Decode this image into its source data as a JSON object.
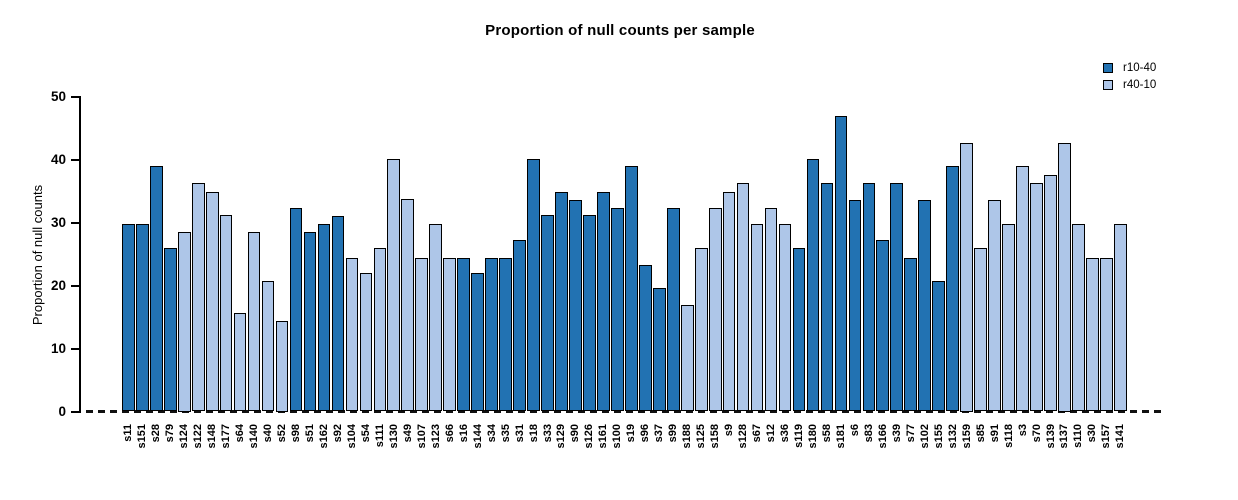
{
  "title": "Proportion of null counts per sample",
  "chart_data": {
    "type": "bar",
    "title": "Proportion of null counts per sample",
    "xlabel": "",
    "ylabel": "Proportion of null counts",
    "ylim": [
      0,
      50
    ],
    "yticks": [
      0,
      10,
      20,
      30,
      40,
      50
    ],
    "grid": false,
    "baseline": "dashed line at y=0",
    "legend_position": "top-right",
    "legend": [
      {
        "label": "r10-40",
        "color": "#2272b2"
      },
      {
        "label": "r40-10",
        "color": "#aec6e8"
      }
    ],
    "series_colors": {
      "r10-40": "#2272b2",
      "r40-10": "#aec6e8"
    },
    "categories": [
      "s11",
      "s151",
      "s28",
      "s79",
      "s124",
      "s122",
      "s148",
      "s177",
      "s64",
      "s140",
      "s40",
      "s52",
      "s98",
      "s51",
      "s162",
      "s92",
      "s104",
      "s54",
      "s111",
      "s130",
      "s49",
      "s107",
      "s123",
      "s66",
      "s16",
      "s144",
      "s34",
      "s35",
      "s31",
      "s18",
      "s33",
      "s129",
      "s90",
      "s126",
      "s161",
      "s100",
      "s19",
      "s96",
      "s37",
      "s99",
      "s188",
      "s125",
      "s158",
      "s9",
      "s128",
      "s67",
      "s12",
      "s36",
      "s119",
      "s180",
      "s58",
      "s181",
      "s6",
      "s83",
      "s166",
      "s39",
      "s77",
      "s102",
      "s155",
      "s132",
      "s159",
      "s85",
      "s91",
      "s118",
      "s3",
      "s70",
      "s139",
      "s137",
      "s110",
      "s30",
      "s157",
      "s141"
    ],
    "values": [
      29.8,
      29.8,
      39.0,
      26.0,
      28.6,
      36.4,
      35.0,
      31.2,
      15.7,
      28.5,
      20.8,
      14.4,
      32.4,
      28.5,
      29.8,
      31.1,
      24.5,
      22.0,
      26.0,
      40.2,
      33.8,
      24.5,
      29.8,
      24.5,
      24.5,
      22.0,
      24.5,
      24.5,
      27.3,
      40.1,
      31.2,
      35.0,
      33.7,
      31.2,
      35.0,
      32.4,
      39.0,
      23.3,
      19.6,
      32.4,
      17.0,
      26.0,
      32.4,
      35.0,
      36.4,
      29.8,
      32.4,
      29.8,
      26.0,
      40.2,
      36.4,
      47.0,
      33.7,
      36.4,
      27.3,
      36.4,
      24.5,
      33.7,
      20.8,
      39.0,
      42.8,
      26.0,
      33.7,
      29.8,
      39.0,
      36.4,
      37.6,
      42.8,
      29.8,
      24.5,
      24.5,
      29.8
    ],
    "bar_series": [
      "r10-40",
      "r10-40",
      "r10-40",
      "r10-40",
      "r40-10",
      "r40-10",
      "r40-10",
      "r40-10",
      "r40-10",
      "r40-10",
      "r40-10",
      "r40-10",
      "r10-40",
      "r10-40",
      "r10-40",
      "r10-40",
      "r40-10",
      "r40-10",
      "r40-10",
      "r40-10",
      "r40-10",
      "r40-10",
      "r40-10",
      "r40-10",
      "r10-40",
      "r10-40",
      "r10-40",
      "r10-40",
      "r10-40",
      "r10-40",
      "r10-40",
      "r10-40",
      "r10-40",
      "r10-40",
      "r10-40",
      "r10-40",
      "r10-40",
      "r10-40",
      "r10-40",
      "r10-40",
      "r40-10",
      "r40-10",
      "r40-10",
      "r40-10",
      "r40-10",
      "r40-10",
      "r40-10",
      "r40-10",
      "r10-40",
      "r10-40",
      "r10-40",
      "r10-40",
      "r10-40",
      "r10-40",
      "r10-40",
      "r10-40",
      "r10-40",
      "r10-40",
      "r10-40",
      "r10-40",
      "r40-10",
      "r40-10",
      "r40-10",
      "r40-10",
      "r40-10",
      "r40-10",
      "r40-10",
      "r40-10",
      "r40-10",
      "r40-10",
      "r40-10",
      "r40-10"
    ]
  }
}
